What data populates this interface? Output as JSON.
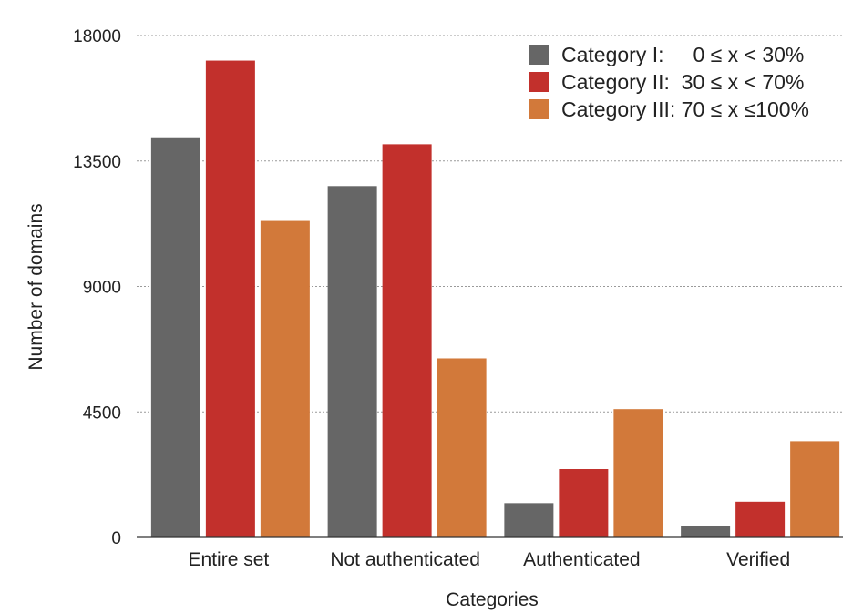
{
  "chart_data": {
    "type": "bar",
    "xlabel": "Categories",
    "ylabel": "Number of domains",
    "categories": [
      "Entire set",
      "Not authenticated",
      "Authenticated",
      "Verified"
    ],
    "yticks": [
      0,
      4500,
      9000,
      13500,
      18000
    ],
    "ylim": [
      0,
      18000
    ],
    "grid": true,
    "legend_position": "top-right",
    "series": [
      {
        "name": "Category I:     0 ≤ x < 30%",
        "color": "#666666",
        "values": [
          14350,
          12600,
          1230,
          400
        ]
      },
      {
        "name": "Category II:  30 ≤ x < 70%",
        "color": "#c2302c",
        "values": [
          17100,
          14100,
          2450,
          1280
        ]
      },
      {
        "name": "Category III: 70 ≤ x ≤100%",
        "color": "#d2793a",
        "values": [
          11350,
          6420,
          4600,
          3450
        ]
      }
    ]
  }
}
